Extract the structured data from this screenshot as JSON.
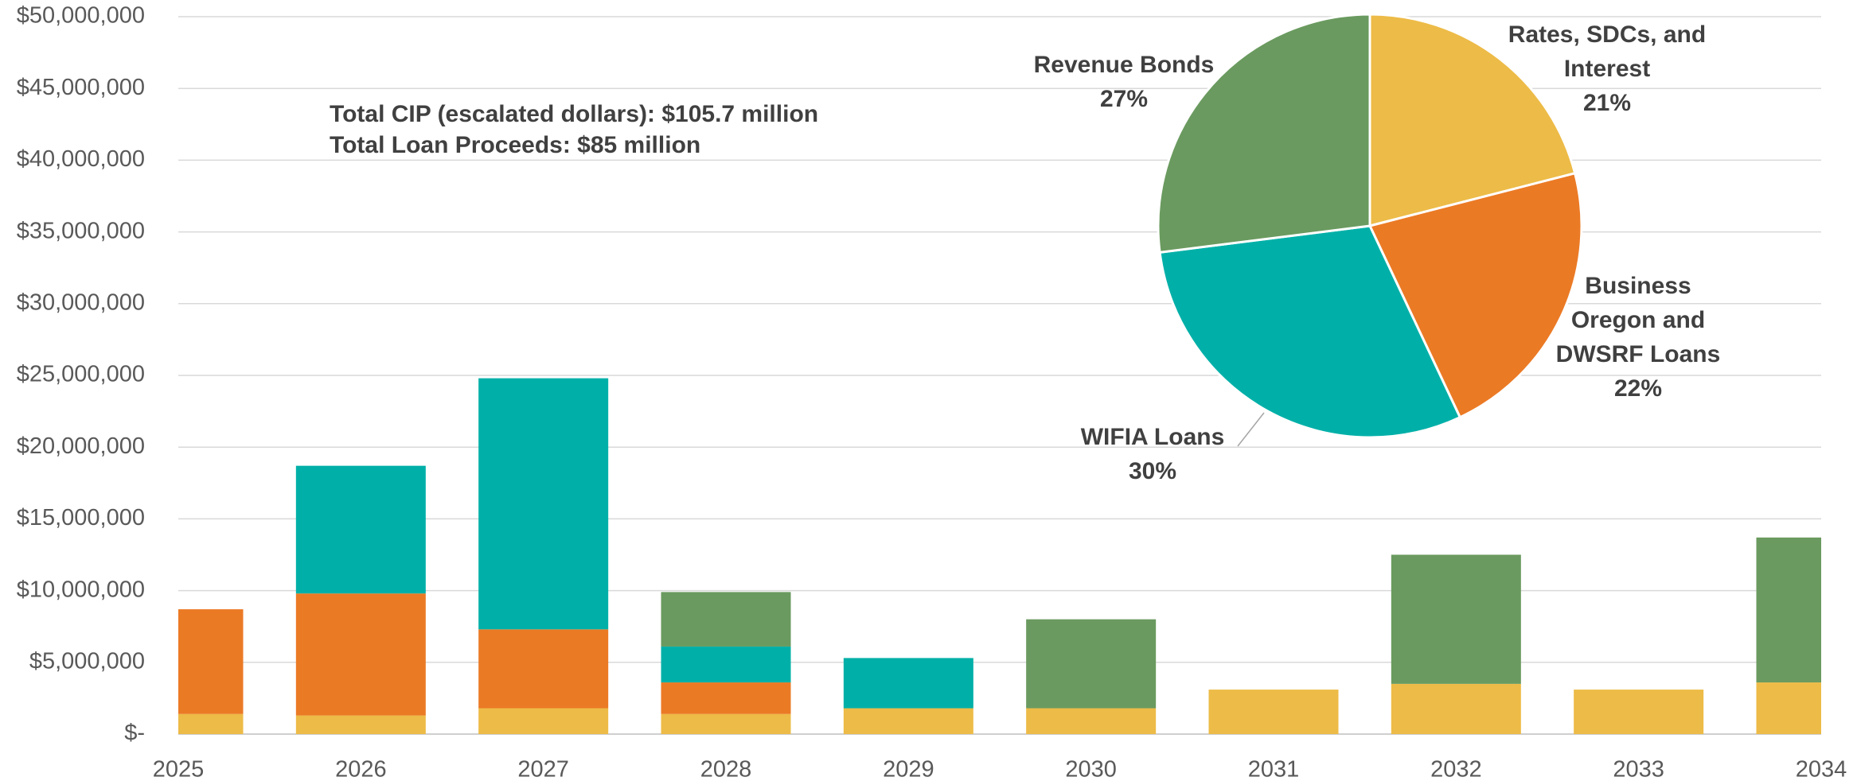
{
  "chart_data": [
    {
      "type": "bar",
      "stacked": true,
      "categories": [
        "2025",
        "2026",
        "2027",
        "2028",
        "2029",
        "2030",
        "2031",
        "2032",
        "2033",
        "2034"
      ],
      "series": [
        {
          "name": "Rates, SDCs, and Interest",
          "color": "#edbb47",
          "values": [
            1400000,
            1300000,
            1800000,
            1400000,
            1800000,
            1800000,
            3100000,
            3500000,
            3100000,
            3600000
          ]
        },
        {
          "name": "Business Oregon and DWSRF Loans",
          "color": "#eb7a25",
          "values": [
            7300000,
            8500000,
            5500000,
            2200000,
            0,
            0,
            0,
            0,
            0,
            0
          ]
        },
        {
          "name": "WIFIA Loans",
          "color": "#00b0a8",
          "values": [
            0,
            8900000,
            17500000,
            2500000,
            3500000,
            0,
            0,
            0,
            0,
            0
          ]
        },
        {
          "name": "Revenue Bonds",
          "color": "#6a9a5f",
          "values": [
            0,
            0,
            0,
            3800000,
            0,
            6200000,
            0,
            9000000,
            0,
            10100000
          ]
        }
      ],
      "ylim": [
        0,
        50000000
      ],
      "yticks": [
        {
          "value": 0,
          "label": "$-"
        },
        {
          "value": 5000000,
          "label": "$5,000,000"
        },
        {
          "value": 10000000,
          "label": "$10,000,000"
        },
        {
          "value": 15000000,
          "label": "$15,000,000"
        },
        {
          "value": 20000000,
          "label": "$20,000,000"
        },
        {
          "value": 25000000,
          "label": "$25,000,000"
        },
        {
          "value": 30000000,
          "label": "$30,000,000"
        },
        {
          "value": 35000000,
          "label": "$35,000,000"
        },
        {
          "value": 40000000,
          "label": "$40,000,000"
        },
        {
          "value": 45000000,
          "label": "$45,000,000"
        },
        {
          "value": 50000000,
          "label": "$50,000,000"
        }
      ],
      "grid": true,
      "annotations": [
        "Total CIP (escalated dollars): $105.7 million",
        "Total Loan Proceeds: $85 million"
      ]
    },
    {
      "type": "pie",
      "categories": [
        "Rates, SDCs, and Interest",
        "Business Oregon and DWSRF Loans",
        "WIFIA Loans",
        "Revenue Bonds"
      ],
      "values": [
        21,
        22,
        30,
        27
      ],
      "value_labels": [
        "21%",
        "22%",
        "30%",
        "27%"
      ],
      "colors": [
        "#edbb47",
        "#eb7a25",
        "#00b0a8",
        "#6a9a5f"
      ]
    }
  ]
}
